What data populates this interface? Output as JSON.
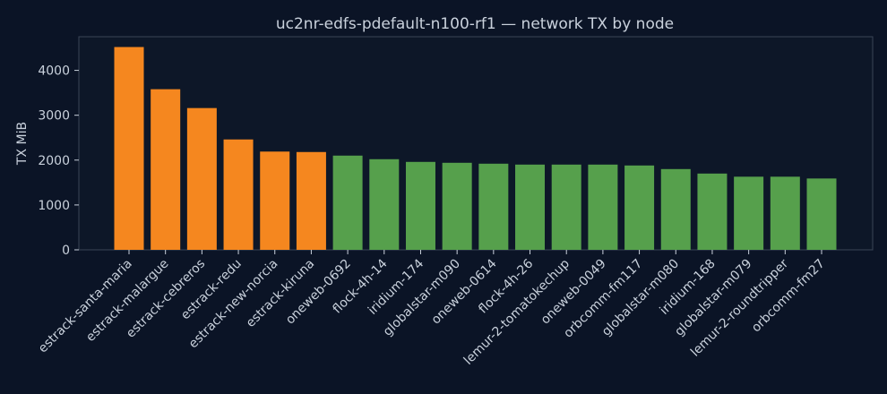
{
  "chart_data": {
    "type": "bar",
    "title": "uc2nr-edfs-pdefault-n100-rf1 — network TX by node",
    "xlabel": "",
    "ylabel": "TX MiB",
    "ylim": [
      0,
      4750
    ],
    "yticks": [
      0,
      1000,
      2000,
      3000,
      4000
    ],
    "grid": false,
    "categories": [
      "estrack-santa-maria",
      "estrack-malargue",
      "estrack-cebreros",
      "estrack-redu",
      "estrack-new-norcia",
      "estrack-kiruna",
      "oneweb-0692",
      "flock-4h-14",
      "iridium-174",
      "globalstar-m090",
      "oneweb-0614",
      "flock-4h-26",
      "lemur-2-tomatokechup",
      "oneweb-0049",
      "orbcomm-fm117",
      "globalstar-m080",
      "iridium-168",
      "globalstar-m079",
      "lemur-2-roundtripper",
      "orbcomm-fm27"
    ],
    "values": [
      4520,
      3580,
      3160,
      2460,
      2190,
      2180,
      2100,
      2020,
      1960,
      1940,
      1920,
      1900,
      1900,
      1900,
      1880,
      1800,
      1700,
      1630,
      1630,
      1590
    ],
    "bar_colors": [
      "#f5871f",
      "#f5871f",
      "#f5871f",
      "#f5871f",
      "#f5871f",
      "#f5871f",
      "#56a04c",
      "#56a04c",
      "#56a04c",
      "#56a04c",
      "#56a04c",
      "#56a04c",
      "#56a04c",
      "#56a04c",
      "#56a04c",
      "#56a04c",
      "#56a04c",
      "#56a04c",
      "#56a04c",
      "#56a04c"
    ],
    "colors": {
      "background": "#0b1426",
      "plot_background": "#0d1728",
      "axis": "#3a4556",
      "text": "#c9d1dc"
    }
  }
}
